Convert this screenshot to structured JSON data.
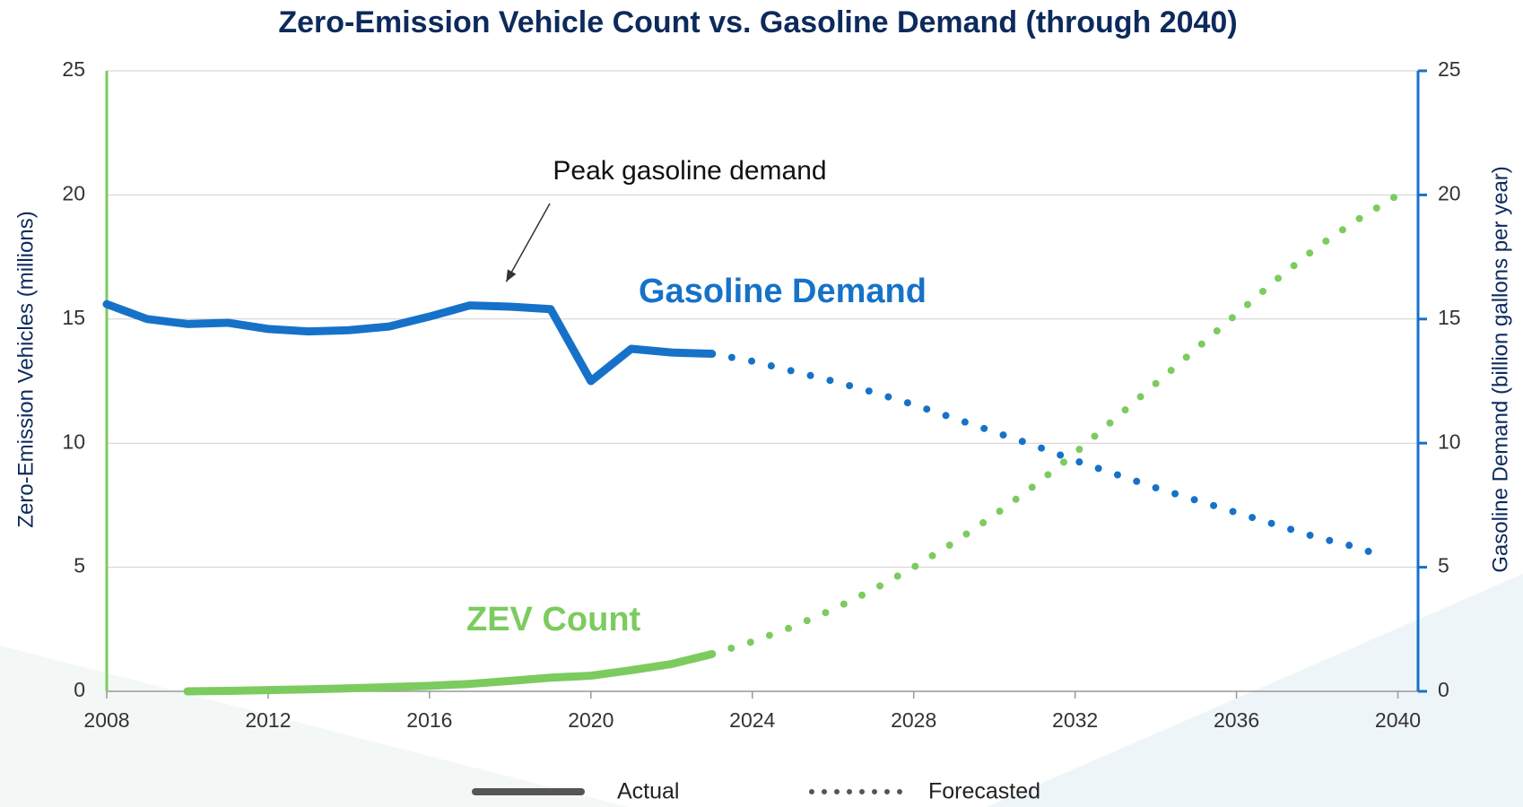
{
  "chart_data": {
    "type": "line",
    "title": "Zero-Emission Vehicle Count vs. Gasoline Demand (through 2040)",
    "ylabel": "Zero-Emission Vehicles (millions)",
    "y2label": "Gasoline Demand (billion gallons per year)",
    "xlim": [
      2008,
      2040.5
    ],
    "xticks": [
      2008,
      2012,
      2016,
      2020,
      2024,
      2028,
      2032,
      2036,
      2040
    ],
    "ylim": [
      0,
      25
    ],
    "yticks": [
      0,
      5,
      10,
      15,
      20,
      25
    ],
    "y2lim": [
      0,
      25
    ],
    "y2ticks": [
      0,
      5,
      10,
      15,
      20,
      25
    ],
    "series": [
      {
        "name": "Gasoline Demand",
        "color": "#1672c8",
        "axis": "y2",
        "actual": {
          "x": [
            2008,
            2009,
            2010,
            2011,
            2012,
            2013,
            2014,
            2015,
            2016,
            2017,
            2018,
            2019,
            2020,
            2021,
            2022,
            2023
          ],
          "values": [
            15.6,
            15.0,
            14.8,
            14.85,
            14.6,
            14.5,
            14.55,
            14.7,
            15.1,
            15.55,
            15.5,
            15.4,
            12.5,
            13.8,
            13.65,
            13.6
          ]
        },
        "forecast": {
          "x": [
            2023,
            2024,
            2025,
            2026,
            2027,
            2028,
            2029,
            2030,
            2031,
            2032,
            2033,
            2034,
            2035,
            2036,
            2037,
            2038,
            2039,
            2039.5
          ],
          "values": [
            13.6,
            13.3,
            12.9,
            12.5,
            12.05,
            11.55,
            11.0,
            10.45,
            9.9,
            9.3,
            8.75,
            8.2,
            7.7,
            7.2,
            6.7,
            6.2,
            5.8,
            5.5
          ]
        }
      },
      {
        "name": "ZEV Count",
        "color": "#7ccb5f",
        "axis": "y",
        "actual": {
          "x": [
            2010,
            2011,
            2012,
            2013,
            2014,
            2015,
            2016,
            2017,
            2018,
            2019,
            2020,
            2021,
            2022,
            2023
          ],
          "values": [
            0,
            0.02,
            0.05,
            0.08,
            0.12,
            0.17,
            0.22,
            0.3,
            0.42,
            0.55,
            0.63,
            0.85,
            1.1,
            1.5
          ]
        },
        "forecast": {
          "x": [
            2023,
            2024,
            2025,
            2026,
            2027,
            2028,
            2029,
            2030,
            2031,
            2032,
            2033,
            2034,
            2035,
            2036,
            2037,
            2038,
            2039,
            2040
          ],
          "values": [
            1.5,
            2.0,
            2.6,
            3.3,
            4.1,
            5.0,
            6.0,
            7.1,
            8.3,
            9.6,
            11.0,
            12.4,
            13.8,
            15.2,
            16.6,
            17.9,
            19.0,
            20.0
          ]
        }
      }
    ],
    "legend": [
      {
        "label": "Actual",
        "style": "solid"
      },
      {
        "label": "Forecasted",
        "style": "dotted"
      }
    ],
    "annotation": {
      "text": "Peak gasoline demand",
      "x": 2017.9,
      "y": 16.5
    }
  }
}
